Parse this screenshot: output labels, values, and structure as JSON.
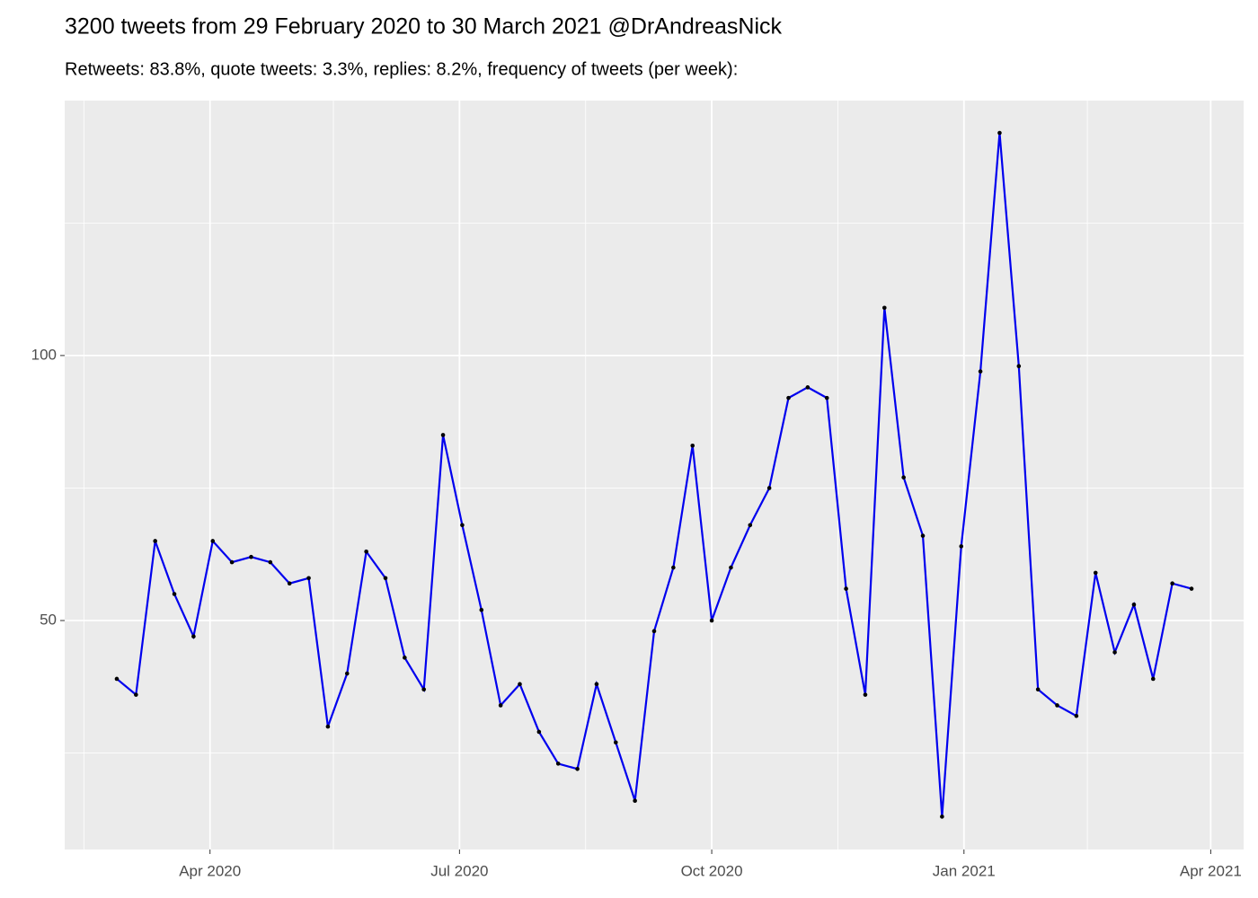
{
  "chart_data": {
    "type": "line",
    "title": "3200 tweets from 29 February 2020 to 30 March 2021 @DrAndreasNick",
    "subtitle": "Retweets: 83.8%, quote tweets: 3.3%, replies: 8.2%, frequency of tweets (per week):",
    "x": [
      "2020-02-27",
      "2020-03-05",
      "2020-03-12",
      "2020-03-19",
      "2020-03-26",
      "2020-04-02",
      "2020-04-09",
      "2020-04-16",
      "2020-04-23",
      "2020-04-30",
      "2020-05-07",
      "2020-05-14",
      "2020-05-21",
      "2020-05-28",
      "2020-06-04",
      "2020-06-11",
      "2020-06-18",
      "2020-06-25",
      "2020-07-02",
      "2020-07-09",
      "2020-07-16",
      "2020-07-23",
      "2020-07-30",
      "2020-08-06",
      "2020-08-13",
      "2020-08-20",
      "2020-08-27",
      "2020-09-03",
      "2020-09-10",
      "2020-09-17",
      "2020-09-24",
      "2020-10-01",
      "2020-10-08",
      "2020-10-15",
      "2020-10-22",
      "2020-10-29",
      "2020-11-05",
      "2020-11-12",
      "2020-11-19",
      "2020-11-26",
      "2020-12-03",
      "2020-12-10",
      "2020-12-17",
      "2020-12-24",
      "2020-12-31",
      "2021-01-07",
      "2021-01-14",
      "2021-01-21",
      "2021-01-28",
      "2021-02-04",
      "2021-02-11",
      "2021-02-18",
      "2021-02-25",
      "2021-03-04",
      "2021-03-11",
      "2021-03-18",
      "2021-03-25"
    ],
    "values": [
      39,
      36,
      65,
      55,
      47,
      65,
      61,
      62,
      61,
      57,
      58,
      30,
      40,
      63,
      58,
      43,
      37,
      85,
      68,
      52,
      34,
      38,
      29,
      23,
      22,
      38,
      27,
      16,
      48,
      60,
      83,
      50,
      60,
      68,
      75,
      92,
      94,
      92,
      56,
      36,
      109,
      77,
      66,
      13,
      64,
      97,
      142,
      98,
      37,
      34,
      32,
      59,
      44,
      53,
      39,
      57,
      56
    ],
    "color": "#0000ee",
    "point_color": "#000000",
    "xlim": [
      "2020-02-08",
      "2021-04-13"
    ],
    "xticks": [
      {
        "value": "2020-04-01",
        "label": "Apr 2020"
      },
      {
        "value": "2020-07-01",
        "label": "Jul 2020"
      },
      {
        "value": "2020-10-01",
        "label": "Oct 2020"
      },
      {
        "value": "2021-01-01",
        "label": "Jan 2021"
      },
      {
        "value": "2021-04-01",
        "label": "Apr 2021"
      }
    ],
    "x_minor_ticks": [
      "2020-02-15",
      "2020-05-16",
      "2020-08-16",
      "2020-11-16",
      "2021-02-15"
    ],
    "ylim": [
      6.8,
      148.1
    ],
    "yticks": [
      50,
      100
    ],
    "y_minor_ticks": [
      25,
      75,
      125
    ],
    "grid": true
  }
}
